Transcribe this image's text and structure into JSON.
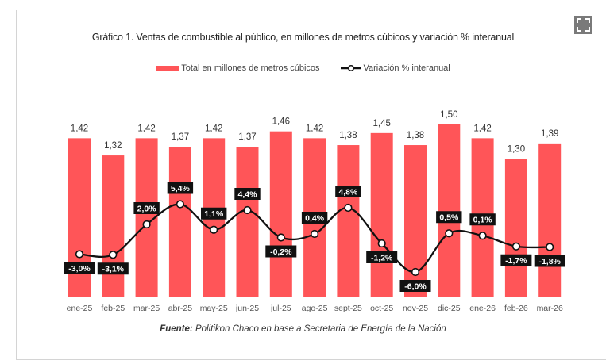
{
  "chart_data": {
    "type": "bar+line",
    "title": "Gráfico 1. Ventas de combustible al público, en millones de metros cúbicos y variación % interanual",
    "categories": [
      "ene-25",
      "feb-25",
      "mar-25",
      "abr-25",
      "may-25",
      "jun-25",
      "jul-25",
      "ago-25",
      "sept-25",
      "oct-25",
      "nov-25",
      "dic-25",
      "ene-26",
      "feb-26",
      "mar-26"
    ],
    "series": [
      {
        "name": "Total en millones de metros cúbicos",
        "type": "bar",
        "color": "#ff5558",
        "values": [
          1.42,
          1.32,
          1.42,
          1.37,
          1.42,
          1.37,
          1.46,
          1.42,
          1.38,
          1.45,
          1.38,
          1.5,
          1.42,
          1.3,
          1.39
        ],
        "labels": [
          "1,42",
          "1,32",
          "1,42",
          "1,37",
          "1,42",
          "1,37",
          "1,46",
          "1,42",
          "1,38",
          "1,45",
          "1,38",
          "1,50",
          "1,42",
          "1,30",
          "1,39"
        ]
      },
      {
        "name": "Variación % interanual",
        "type": "line",
        "color": "#111111",
        "values": [
          -3.0,
          -3.1,
          2.0,
          5.4,
          1.1,
          4.4,
          -0.2,
          0.4,
          4.8,
          -1.2,
          -6.0,
          0.5,
          0.1,
          -1.7,
          -1.8
        ],
        "labels": [
          "-3,0%",
          "-3,1%",
          "2,0%",
          "5,4%",
          "1,1%",
          "4,4%",
          "-0,2%",
          "0,4%",
          "4,8%",
          "-1,2%",
          "-6,0%",
          "0,5%",
          "0,1%",
          "-1,7%",
          "-1,8%"
        ]
      }
    ],
    "grid": false,
    "legend": "top-center"
  },
  "source": {
    "label": "Fuente:",
    "text": " Politikon Chaco en base a Secretaria de Energía de la Nación"
  },
  "icons": {
    "expand": "expand-icon"
  }
}
